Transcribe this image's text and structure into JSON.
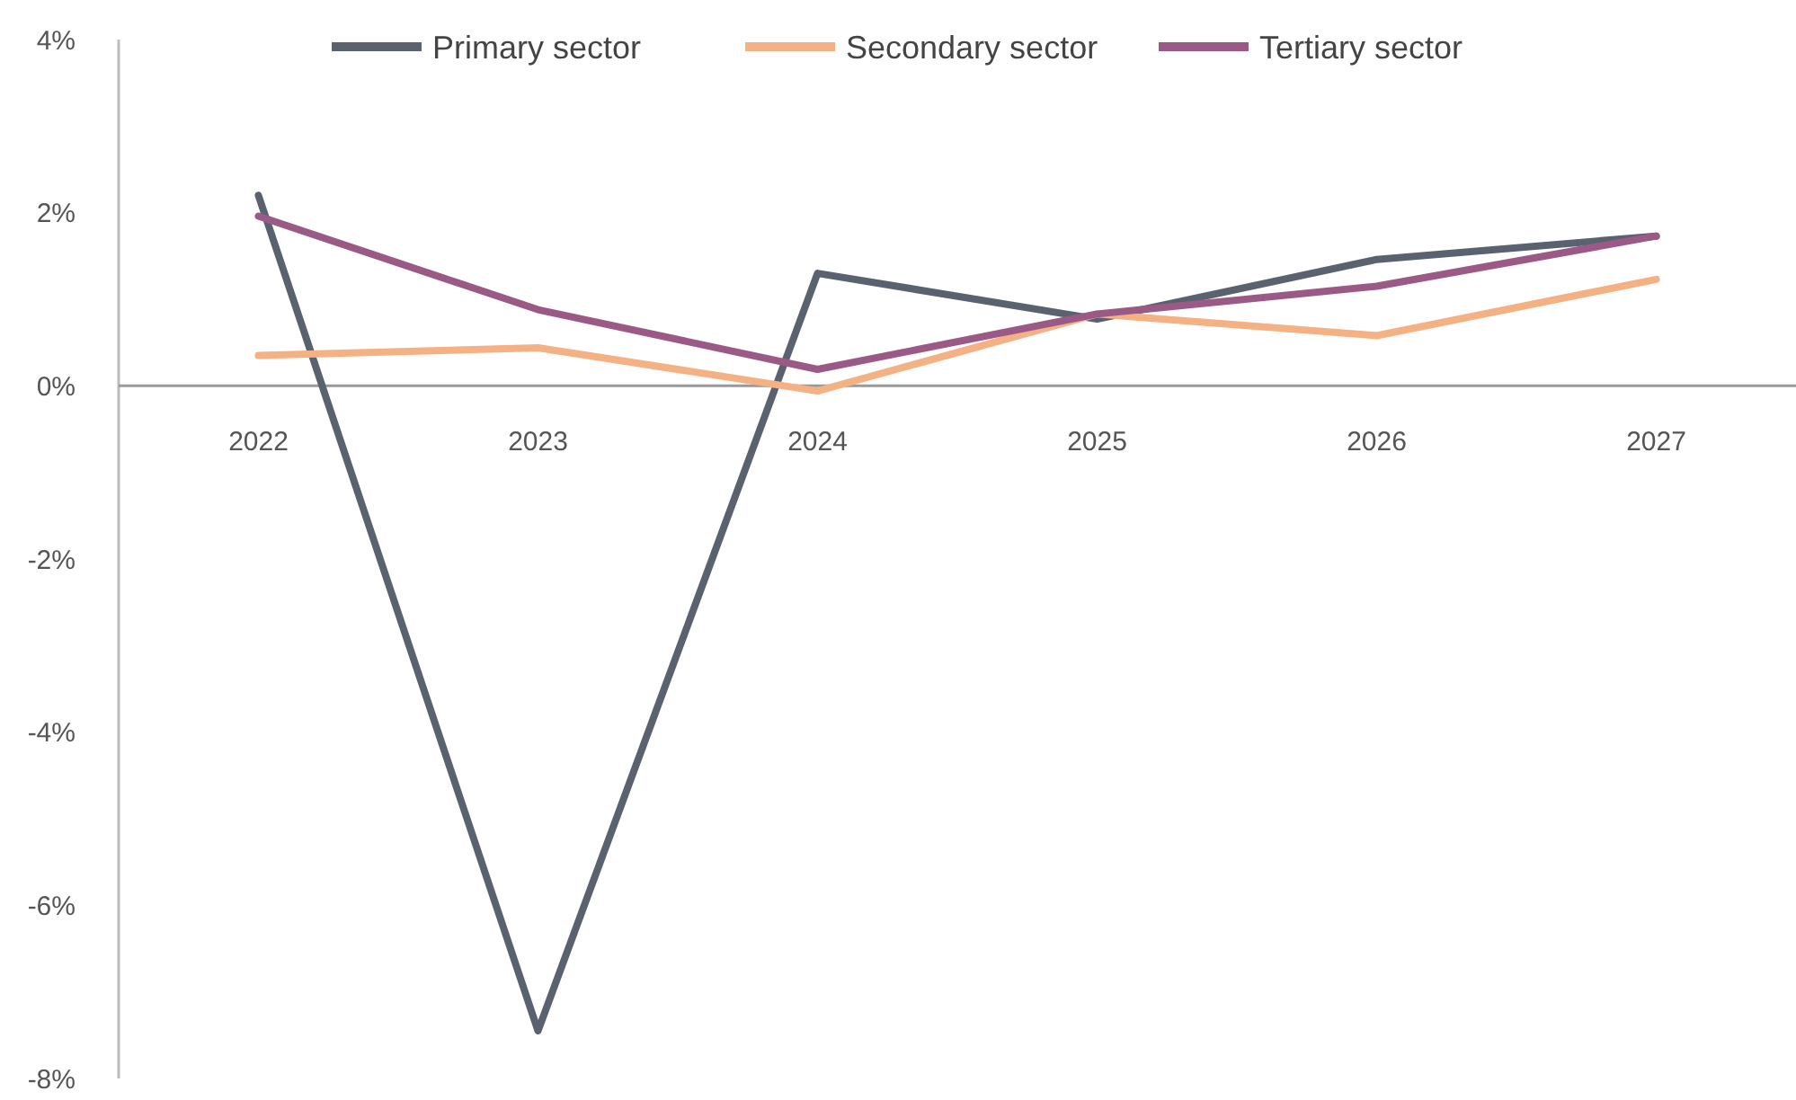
{
  "chart_data": {
    "type": "line",
    "categories": [
      "2022",
      "2023",
      "2024",
      "2025",
      "2026",
      "2027"
    ],
    "series": [
      {
        "name": "Primary sector",
        "color": "#5a6270",
        "values": [
          2.2,
          -7.45,
          1.3,
          0.77,
          1.46,
          1.73
        ]
      },
      {
        "name": "Secondary sector",
        "color": "#f4b183",
        "values": [
          0.35,
          0.44,
          -0.06,
          0.83,
          0.58,
          1.23
        ]
      },
      {
        "name": "Tertiary sector",
        "color": "#9b5a86",
        "values": [
          1.96,
          0.88,
          0.19,
          0.83,
          1.15,
          1.73
        ]
      }
    ],
    "ylim": [
      -8,
      4
    ],
    "yticks": [
      {
        "value": -8,
        "label": "-8%"
      },
      {
        "value": -6,
        "label": "-6%"
      },
      {
        "value": -4,
        "label": "-4%"
      },
      {
        "value": -2,
        "label": "-2%"
      },
      {
        "value": 0,
        "label": "0%"
      },
      {
        "value": 2,
        "label": "2%"
      },
      {
        "value": 4,
        "label": "4%"
      }
    ],
    "grid": false,
    "legend": "top",
    "marker": "none",
    "line_style": "solid"
  }
}
